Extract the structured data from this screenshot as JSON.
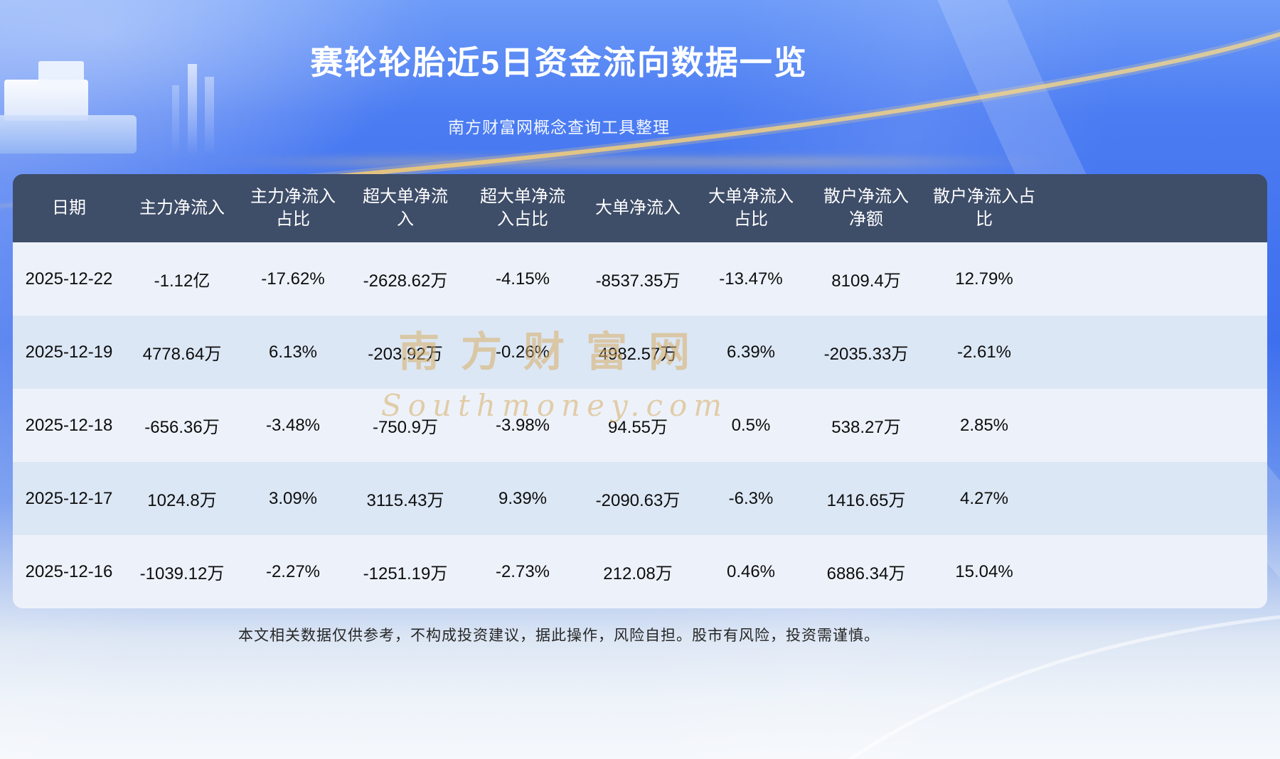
{
  "header": {
    "title": "赛轮轮胎近5日资金流向数据一览",
    "subtitle": "南方财富网概念查询工具整理"
  },
  "chart_data": {
    "type": "table",
    "title": "赛轮轮胎近5日资金流向数据一览",
    "columns": [
      "日期",
      "主力净流入",
      "主力净流入占比",
      "超大单净流入",
      "超大单净流入占比",
      "大单净流入",
      "大单净流入占比",
      "散户净流入净额",
      "散户净流入占比"
    ],
    "rows": [
      [
        "2025-12-22",
        "-1.12亿",
        "-17.62%",
        "-2628.62万",
        "-4.15%",
        "-8537.35万",
        "-13.47%",
        "8109.4万",
        "12.79%"
      ],
      [
        "2025-12-19",
        "4778.64万",
        "6.13%",
        "-203.92万",
        "-0.26%",
        "4982.57万",
        "6.39%",
        "-2035.33万",
        "-2.61%"
      ],
      [
        "2025-12-18",
        "-656.36万",
        "-3.48%",
        "-750.9万",
        "-3.98%",
        "94.55万",
        "0.5%",
        "538.27万",
        "2.85%"
      ],
      [
        "2025-12-17",
        "1024.8万",
        "3.09%",
        "3115.43万",
        "9.39%",
        "-2090.63万",
        "-6.3%",
        "1416.65万",
        "4.27%"
      ],
      [
        "2025-12-16",
        "-1039.12万",
        "-2.27%",
        "-1251.19万",
        "-2.73%",
        "212.08万",
        "0.46%",
        "6886.34万",
        "15.04%"
      ]
    ]
  },
  "watermark": {
    "brand": "南方财富网",
    "domain": "Southmoney.com"
  },
  "footer": {
    "disclaimer": "本文相关数据仅供参考，不构成投资建议，据此操作，风险自担。股市有风险，投资需谨慎。"
  },
  "colors": {
    "background_blue": "#3E6FEE",
    "header_bg": "#3E4D68",
    "row_light": "#EDF2FA",
    "row_alt": "#DCE7F5",
    "gold_accent": "#E2BC74",
    "title_text": "#FFFFFF"
  }
}
